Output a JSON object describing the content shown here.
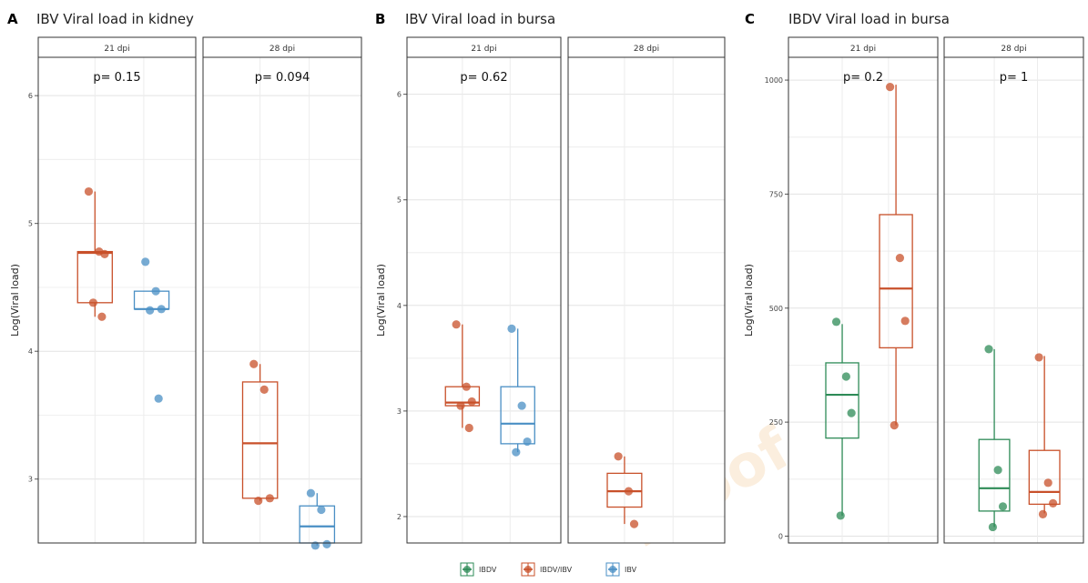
{
  "colors": {
    "IBDV": "#2e8b57",
    "IBDV/IBV": "#c8502a",
    "IBV": "#4a8fc4"
  },
  "watermark": "Proof",
  "legend": [
    "IBDV",
    "IBDV/IBV",
    "IBV"
  ],
  "chart_data": [
    {
      "letter": "A",
      "type": "box",
      "title": "IBV Viral load in kidney",
      "ylabel": "Log(Viral load)",
      "ylim": [
        2.5,
        6.3
      ],
      "yticks": [
        3,
        4,
        5,
        6
      ],
      "facets": [
        {
          "label": "21 dpi",
          "pvalue": "p= 0.15",
          "groups": [
            {
              "name": "IBDV/IBV",
              "q1": 4.38,
              "median": 4.77,
              "q3": 4.78,
              "wmin": 4.27,
              "wmax": 5.25,
              "points": [
                5.25,
                4.78,
                4.76,
                4.38,
                4.27
              ]
            },
            {
              "name": "IBV",
              "q1": 4.33,
              "median": 4.33,
              "q3": 4.47,
              "wmin": 4.33,
              "wmax": 4.47,
              "points": [
                4.7,
                4.47,
                4.33,
                4.32,
                3.63
              ]
            }
          ]
        },
        {
          "label": "28 dpi",
          "pvalue": "p= 0.094",
          "groups": [
            {
              "name": "IBDV/IBV",
              "q1": 2.85,
              "median": 3.28,
              "q3": 3.76,
              "wmin": 2.83,
              "wmax": 3.9,
              "points": [
                3.9,
                3.7,
                2.85,
                2.83
              ]
            },
            {
              "name": "IBV",
              "q1": 2.5,
              "median": 2.63,
              "q3": 2.79,
              "wmin": 2.48,
              "wmax": 2.89,
              "points": [
                2.89,
                2.76,
                2.49,
                2.48
              ]
            }
          ]
        }
      ]
    },
    {
      "letter": "B",
      "type": "box",
      "title": "IBV Viral load in bursa",
      "ylabel": "Log(Viral load)",
      "ylim": [
        1.75,
        6.35
      ],
      "yticks": [
        2,
        3,
        4,
        5,
        6
      ],
      "facets": [
        {
          "label": "21 dpi",
          "pvalue": "p= 0.62",
          "groups": [
            {
              "name": "IBDV/IBV",
              "q1": 3.05,
              "median": 3.08,
              "q3": 3.23,
              "wmin": 2.84,
              "wmax": 3.82,
              "points": [
                3.82,
                3.23,
                3.09,
                3.05,
                2.84
              ]
            },
            {
              "name": "IBV",
              "q1": 2.69,
              "median": 2.88,
              "q3": 3.23,
              "wmin": 2.61,
              "wmax": 3.78,
              "points": [
                3.78,
                3.05,
                2.71,
                2.61
              ]
            }
          ]
        },
        {
          "label": "28 dpi",
          "pvalue": "",
          "groups": [
            {
              "name": "IBDV/IBV",
              "q1": 2.09,
              "median": 2.24,
              "q3": 2.41,
              "wmin": 1.93,
              "wmax": 2.57,
              "points": [
                2.57,
                2.24,
                1.93
              ]
            }
          ]
        }
      ]
    },
    {
      "letter": "C",
      "type": "box",
      "title": "IBDV Viral load in bursa",
      "ylabel": "Log(Viral load)",
      "ylim": [
        -15,
        1050
      ],
      "yticks": [
        0,
        250,
        500,
        750,
        1000
      ],
      "facets": [
        {
          "label": "21 dpi",
          "pvalue": "p= 0.2",
          "groups": [
            {
              "name": "IBDV",
              "q1": 215,
              "median": 310,
              "q3": 380,
              "wmin": 45,
              "wmax": 465,
              "points": [
                470,
                350,
                270,
                45
              ]
            },
            {
              "name": "IBDV/IBV",
              "q1": 413,
              "median": 543,
              "q3": 705,
              "wmin": 243,
              "wmax": 990,
              "points": [
                985,
                610,
                472,
                243
              ]
            }
          ]
        },
        {
          "label": "28 dpi",
          "pvalue": "p= 1",
          "groups": [
            {
              "name": "IBDV",
              "q1": 55,
              "median": 105,
              "q3": 212,
              "wmin": 20,
              "wmax": 410,
              "points": [
                410,
                145,
                65,
                20
              ]
            },
            {
              "name": "IBDV/IBV",
              "q1": 70,
              "median": 97,
              "q3": 188,
              "wmin": 50,
              "wmax": 395,
              "points": [
                392,
                117,
                72,
                48
              ]
            }
          ]
        }
      ]
    }
  ]
}
